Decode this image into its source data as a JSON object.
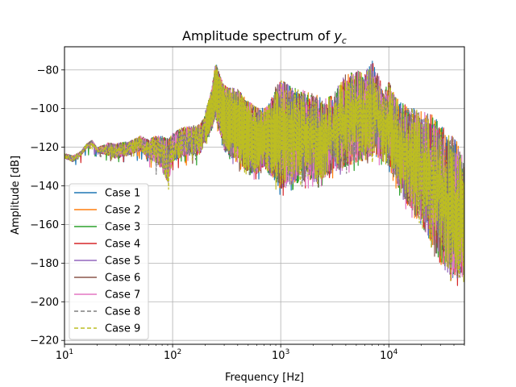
{
  "chart_data": {
    "type": "line",
    "title_main": "Amplitude spectrum of ",
    "title_var": "y",
    "title_sub": "c",
    "xlabel": "Frequency [Hz]",
    "ylabel": "Amplitude [dB]",
    "xscale": "log",
    "xlim": [
      10,
      50000
    ],
    "ylim": [
      -222,
      -68
    ],
    "grid": true,
    "legend_position": "lower-left",
    "x_ticks": [
      {
        "value": 10,
        "base": "10",
        "exp": "1"
      },
      {
        "value": 100,
        "base": "10",
        "exp": "2"
      },
      {
        "value": 1000,
        "base": "10",
        "exp": "3"
      },
      {
        "value": 10000,
        "base": "10",
        "exp": "4"
      }
    ],
    "y_ticks": [
      {
        "value": -80,
        "label": "−80"
      },
      {
        "value": -100,
        "label": "−100"
      },
      {
        "value": -120,
        "label": "−120"
      },
      {
        "value": -140,
        "label": "−140"
      },
      {
        "value": -160,
        "label": "−160"
      },
      {
        "value": -180,
        "label": "−180"
      },
      {
        "value": -200,
        "label": "−200"
      },
      {
        "value": -220,
        "label": "−220"
      }
    ],
    "envelope": {
      "x": [
        10,
        12,
        14,
        16,
        18,
        20,
        25,
        30,
        40,
        50,
        60,
        70,
        80,
        90,
        100,
        120,
        150,
        180,
        200,
        230,
        250,
        280,
        300,
        400,
        500,
        600,
        700,
        800,
        900,
        1000,
        1200,
        1500,
        2000,
        2500,
        3000,
        4000,
        5000,
        6000,
        7000,
        8000,
        9000,
        10000,
        12000,
        15000,
        20000,
        25000,
        30000,
        35000,
        40000,
        45000,
        50000
      ],
      "upper": [
        -123,
        -124,
        -122,
        -118,
        -116,
        -120,
        -117,
        -117,
        -116,
        -113,
        -115,
        -112,
        -112,
        -112,
        -111,
        -108,
        -107,
        -106,
        -102,
        -90,
        -76,
        -84,
        -88,
        -90,
        -96,
        -99,
        -100,
        -96,
        -88,
        -85,
        -88,
        -90,
        -92,
        -95,
        -93,
        -82,
        -80,
        -81,
        -75,
        -82,
        -92,
        -85,
        -95,
        -99,
        -101,
        -103,
        -108,
        -112,
        -114,
        -120,
        -128
      ],
      "lower": [
        -126,
        -128,
        -125,
        -121,
        -119,
        -123,
        -125,
        -127,
        -125,
        -123,
        -127,
        -130,
        -134,
        -143,
        -130,
        -127,
        -126,
        -126,
        -118,
        -110,
        -105,
        -115,
        -122,
        -128,
        -133,
        -134,
        -130,
        -135,
        -138,
        -142,
        -140,
        -138,
        -137,
        -137,
        -133,
        -130,
        -128,
        -127,
        -125,
        -125,
        -128,
        -130,
        -140,
        -150,
        -160,
        -170,
        -180,
        -185,
        -188,
        -188,
        -190
      ]
    },
    "series": [
      {
        "name": "Case 1",
        "color": "#1f77b4",
        "dashed": false
      },
      {
        "name": "Case 2",
        "color": "#ff7f0e",
        "dashed": false
      },
      {
        "name": "Case 3",
        "color": "#2ca02c",
        "dashed": false
      },
      {
        "name": "Case 4",
        "color": "#d62728",
        "dashed": false
      },
      {
        "name": "Case 5",
        "color": "#9467bd",
        "dashed": false
      },
      {
        "name": "Case 6",
        "color": "#8c564b",
        "dashed": false
      },
      {
        "name": "Case 7",
        "color": "#e377c2",
        "dashed": false
      },
      {
        "name": "Case 8",
        "color": "#7f7f7f",
        "dashed": true
      },
      {
        "name": "Case 9",
        "color": "#bcbd22",
        "dashed": true
      }
    ]
  }
}
